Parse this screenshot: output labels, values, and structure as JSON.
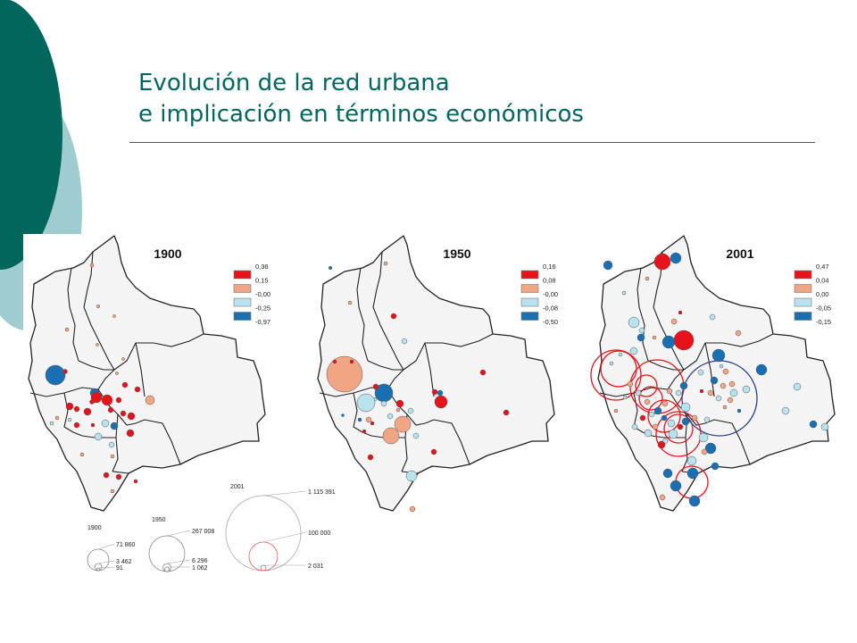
{
  "slide": {
    "title_line1": "Evolución de la red urbana",
    "title_line2": "e implicación en términos económicos",
    "colors": {
      "title": "#00665E",
      "deco_dark": "#00665E",
      "deco_light": "#9FCDCF"
    }
  },
  "legend_colors": [
    "#E8121A",
    "#F2A583",
    "#B9E1EE",
    "#1A6FB2"
  ],
  "maps": [
    {
      "year": "1900",
      "legend": [
        "0,36",
        "0,15",
        "-0,00",
        "-0,25",
        "-0,97"
      ]
    },
    {
      "year": "1950",
      "legend": [
        "0,16",
        "0,08",
        "-0,00",
        "-0,08",
        "-0,50"
      ]
    },
    {
      "year": "2001",
      "legend": [
        "0,47",
        "0,04",
        "0,00",
        "-0,05",
        "-0,15"
      ]
    }
  ],
  "size_legends": [
    {
      "year": "1900",
      "values": [
        "71 860",
        "3 462",
        "91"
      ]
    },
    {
      "year": "1950",
      "values": [
        "267 008",
        "6 296",
        "1 062"
      ]
    },
    {
      "year": "2001",
      "values": [
        "1 115 391",
        "100 000",
        "2 031"
      ]
    }
  ]
}
